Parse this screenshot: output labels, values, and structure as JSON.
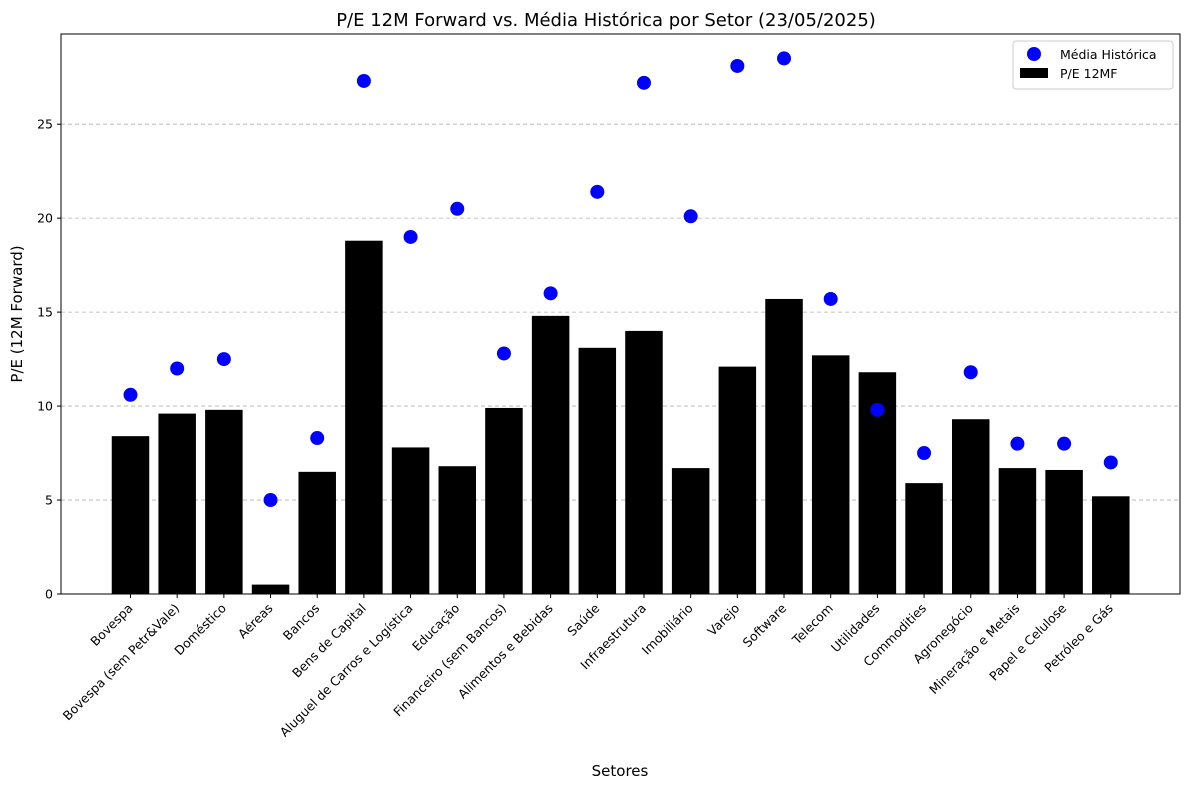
{
  "chart_data": {
    "type": "bar",
    "title": "P/E 12M Forward vs. Média Histórica por Setor (23/05/2025)",
    "xlabel": "Setores",
    "ylabel": "P/E (12M Forward)",
    "ylim": [
      0,
      29.8
    ],
    "yticks": [
      0,
      5,
      10,
      15,
      20,
      25
    ],
    "grid": "y dashed",
    "legend_position": "top-right",
    "categories": [
      "Bovespa",
      "Bovespa (sem Petr&Vale)",
      "Doméstico",
      "Aéreas",
      "Bancos",
      "Bens de Capital",
      "Aluguel de Carros e Logística",
      "Educação",
      "Financeiro (sem Bancos)",
      "Alimentos e Bebidas",
      "Saúde",
      "Infraestrutura",
      "Imobiliário",
      "Varejo",
      "Software",
      "Telecom",
      "Utilidades",
      "Commodities",
      "Agronegócio",
      "Mineração e Metais",
      "Papel e Celulose",
      "Petróleo e Gás"
    ],
    "series": [
      {
        "name": "P/E 12MF",
        "type": "bar",
        "color": "#000000",
        "values": [
          8.4,
          9.6,
          9.8,
          0.5,
          6.5,
          18.8,
          7.8,
          6.8,
          9.9,
          14.8,
          13.1,
          14.0,
          6.7,
          12.1,
          15.7,
          12.7,
          11.8,
          5.9,
          9.3,
          6.7,
          6.6,
          5.2
        ]
      },
      {
        "name": "Média Histórica",
        "type": "scatter",
        "color": "#0000ff",
        "values": [
          10.6,
          12.0,
          12.5,
          5.0,
          8.3,
          27.3,
          19.0,
          20.5,
          12.8,
          16.0,
          21.4,
          27.2,
          20.1,
          28.1,
          28.5,
          15.7,
          9.8,
          7.5,
          11.8,
          8.0,
          8.0,
          7.0
        ]
      }
    ]
  }
}
